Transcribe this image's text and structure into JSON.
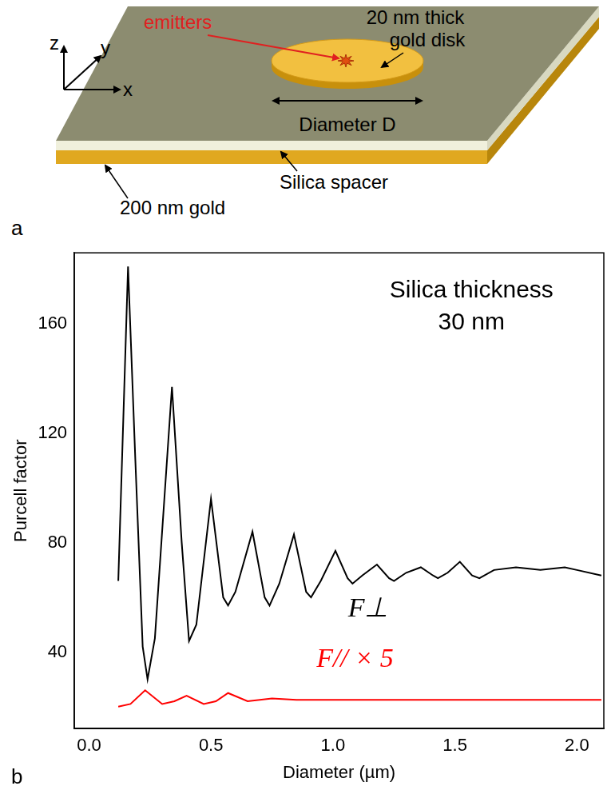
{
  "diagram": {
    "panel": "a",
    "axes": [
      "x",
      "y",
      "z"
    ],
    "emitters": "emitters",
    "disk": "20 nm thick gold disk",
    "diameter": "Diameter D",
    "spacer": "Silica spacer",
    "substrate": "200 nm gold"
  },
  "chart_data": {
    "type": "line",
    "panel": "b",
    "annotation": [
      "Silica thickness",
      "30 nm"
    ],
    "x_label": "Diameter (µm)",
    "y_label": "Purcell factor",
    "xlim": [
      -0.06,
      2.11
    ],
    "xticks": [
      {
        "value": 0,
        "label": "0.0"
      },
      {
        "value": 0.5,
        "label": "0.5"
      },
      {
        "value": 1,
        "label": "1.0"
      },
      {
        "value": 1.5,
        "label": "1.5"
      },
      {
        "value": 2,
        "label": "2.0"
      }
    ],
    "ylim": [
      12,
      186
    ],
    "yticks": [
      40,
      80,
      120,
      160
    ],
    "grid": false,
    "series": [
      {
        "name": "F⊥",
        "color": "#000000",
        "x": [
          0.12,
          0.16,
          0.19,
          0.22,
          0.24,
          0.27,
          0.34,
          0.38,
          0.41,
          0.44,
          0.5,
          0.55,
          0.57,
          0.6,
          0.67,
          0.72,
          0.74,
          0.78,
          0.84,
          0.89,
          0.91,
          0.95,
          1.01,
          1.06,
          1.08,
          1.12,
          1.18,
          1.23,
          1.25,
          1.3,
          1.36,
          1.41,
          1.43,
          1.47,
          1.52,
          1.57,
          1.6,
          1.66,
          1.75,
          1.85,
          1.95,
          2.0,
          2.1
        ],
        "values": [
          66,
          181,
          110,
          42,
          30,
          45,
          137,
          80,
          44,
          50,
          96,
          60,
          57,
          62,
          84,
          60,
          57,
          65,
          83,
          62,
          60,
          66,
          77,
          67,
          65,
          68,
          72,
          67,
          66,
          69,
          71,
          68,
          67,
          69,
          73,
          68,
          67,
          70,
          71,
          70,
          71,
          70,
          68
        ]
      },
      {
        "name": "F// × 5",
        "color": "#ff0000",
        "x": [
          0.12,
          0.17,
          0.23,
          0.3,
          0.35,
          0.4,
          0.47,
          0.52,
          0.57,
          0.65,
          0.75,
          0.85,
          1.0,
          1.2,
          1.5,
          1.8,
          2.1
        ],
        "values": [
          20,
          21,
          26,
          21,
          22,
          24,
          21,
          22,
          25,
          22,
          23,
          22.5,
          22.5,
          22.5,
          22.5,
          22.5,
          22.5
        ]
      }
    ]
  }
}
